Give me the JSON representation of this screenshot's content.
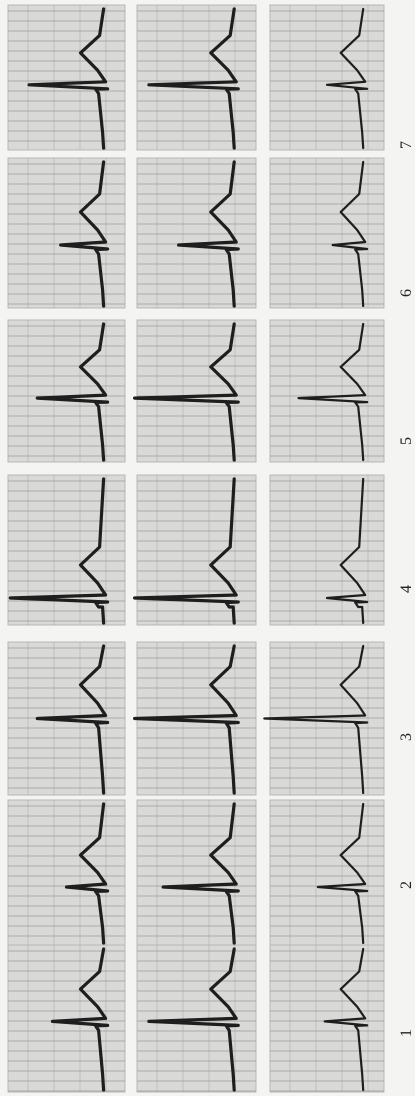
{
  "figure": {
    "background": "#f4f4f2",
    "panel_color": "#d9d9d7",
    "grid_color": "#9d9d9a",
    "trace_color": "#1e1e1e",
    "column_labels": [
      "1",
      "2",
      "3",
      "4",
      "5",
      "6",
      "7"
    ]
  }
}
